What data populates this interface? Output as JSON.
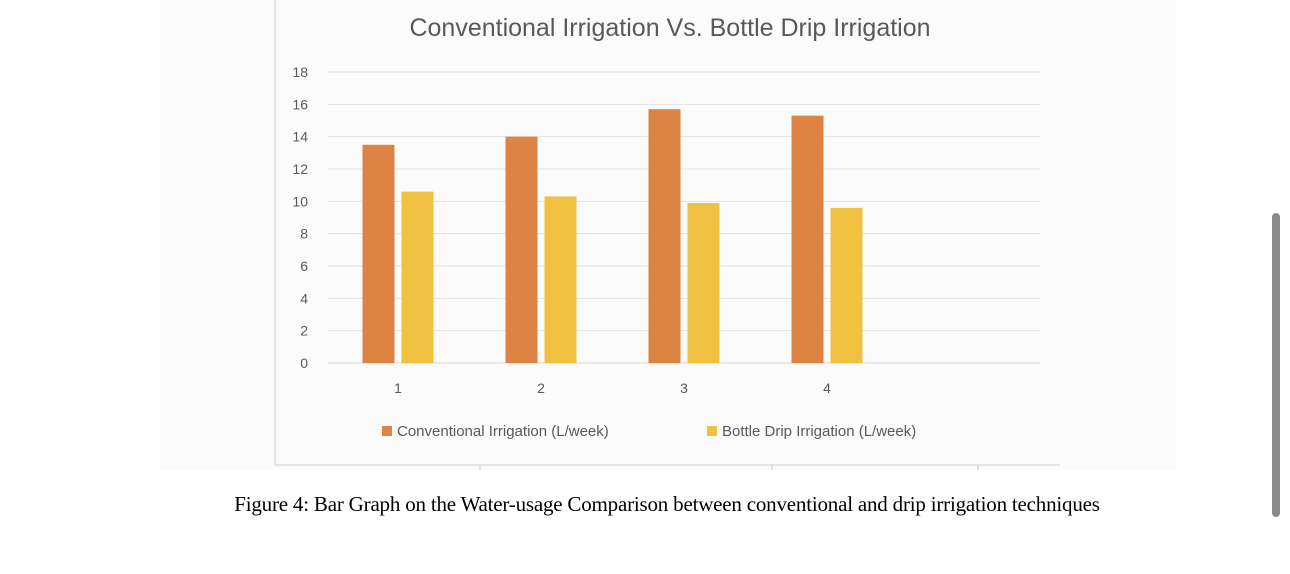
{
  "chart_data": {
    "type": "bar",
    "title": "Conventional Irrigation Vs. Bottle Drip Irrigation",
    "xlabel": "",
    "ylabel": "",
    "categories": [
      "1",
      "2",
      "3",
      "4"
    ],
    "series": [
      {
        "name": "Conventional Irrigation (L/week)",
        "color": "#dd8343",
        "values": [
          13.5,
          14.0,
          15.7,
          15.3
        ]
      },
      {
        "name": "Bottle Drip Irrigation (L/week)",
        "color": "#f0c040",
        "values": [
          10.6,
          10.3,
          9.9,
          9.6
        ]
      }
    ],
    "ylim": [
      0,
      18
    ],
    "yticks": [
      0,
      2,
      4,
      6,
      8,
      10,
      12,
      14,
      16,
      18
    ],
    "grid": true,
    "legend_position": "bottom"
  },
  "caption": "Figure 4: Bar Graph on the Water-usage Comparison between conventional and drip irrigation techniques"
}
